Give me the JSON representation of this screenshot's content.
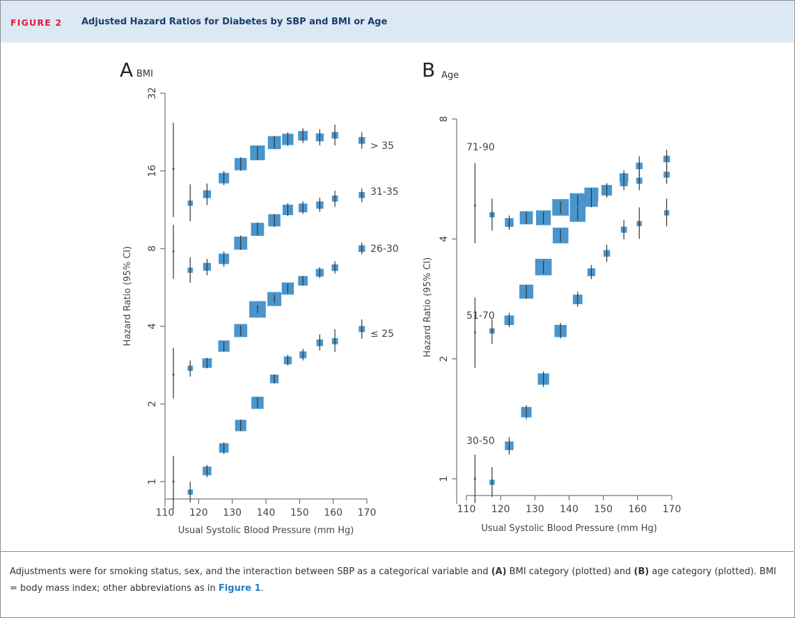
{
  "header": {
    "figure_label": "FIGURE 2",
    "figure_title": "Adjusted Hazard Ratios for Diabetes by SBP and BMI or Age"
  },
  "caption": {
    "text_1": "Adjustments were for smoking status, sex, and the interaction between SBP as a categorical variable and ",
    "bold_a": "(A)",
    "text_2": " BMI category (plotted) and ",
    "bold_b": "(B)",
    "text_3": " age category (plotted). BMI = body mass index; other abbreviations as in ",
    "link": "Figure 1",
    "text_4": "."
  },
  "colors": {
    "marker": "#4a95cc",
    "whisker": "#333333",
    "axis": "#555555"
  },
  "chart_data": [
    {
      "panel": "A",
      "type": "scatter",
      "subtitle": "BMI",
      "xlabel": "Usual Systolic Blood Pressure (mm Hg)",
      "ylabel": "Hazard Ratio (95% CI)",
      "ylog": true,
      "xlim": [
        110,
        170
      ],
      "ylim": [
        0.85,
        32
      ],
      "x_ticks": [
        110,
        120,
        130,
        140,
        150,
        160,
        170
      ],
      "y_ticks": [
        1,
        2,
        4,
        8,
        16,
        32
      ],
      "series": [
        {
          "name": "> 35",
          "points": [
            {
              "x": 112.5,
              "y": 16.3,
              "lo": 10.6,
              "hi": 24.6,
              "w": 0.05
            },
            {
              "x": 117.5,
              "y": 12.0,
              "lo": 10.2,
              "hi": 14.2,
              "w": 0.3
            },
            {
              "x": 122.5,
              "y": 13.0,
              "lo": 11.8,
              "hi": 14.3,
              "w": 0.45
            },
            {
              "x": 127.5,
              "y": 15.0,
              "lo": 14.1,
              "hi": 16.0,
              "w": 0.6
            },
            {
              "x": 132.5,
              "y": 17.0,
              "lo": 16.0,
              "hi": 18.1,
              "w": 0.7
            },
            {
              "x": 137.5,
              "y": 18.8,
              "lo": 17.7,
              "hi": 19.9,
              "w": 0.85
            },
            {
              "x": 142.5,
              "y": 20.6,
              "lo": 19.5,
              "hi": 21.8,
              "w": 0.75
            },
            {
              "x": 146.5,
              "y": 21.2,
              "lo": 20.0,
              "hi": 22.6,
              "w": 0.65
            },
            {
              "x": 151.0,
              "y": 21.9,
              "lo": 20.5,
              "hi": 23.4,
              "w": 0.55
            },
            {
              "x": 156.0,
              "y": 21.6,
              "lo": 20.1,
              "hi": 23.2,
              "w": 0.45
            },
            {
              "x": 160.5,
              "y": 22.0,
              "lo": 20.1,
              "hi": 24.2,
              "w": 0.38
            },
            {
              "x": 168.5,
              "y": 21.0,
              "lo": 19.5,
              "hi": 22.6,
              "w": 0.38
            }
          ]
        },
        {
          "name": "31-35",
          "points": [
            {
              "x": 112.5,
              "y": 7.8,
              "lo": 6.1,
              "hi": 9.9,
              "w": 0.05
            },
            {
              "x": 117.5,
              "y": 6.6,
              "lo": 5.9,
              "hi": 7.4,
              "w": 0.3
            },
            {
              "x": 122.5,
              "y": 6.8,
              "lo": 6.3,
              "hi": 7.3,
              "w": 0.45
            },
            {
              "x": 127.5,
              "y": 7.3,
              "lo": 6.8,
              "hi": 7.8,
              "w": 0.6
            },
            {
              "x": 132.5,
              "y": 8.4,
              "lo": 7.9,
              "hi": 9.0,
              "w": 0.75
            },
            {
              "x": 137.5,
              "y": 9.5,
              "lo": 9.0,
              "hi": 10.1,
              "w": 0.75
            },
            {
              "x": 142.5,
              "y": 10.3,
              "lo": 9.7,
              "hi": 10.9,
              "w": 0.7
            },
            {
              "x": 146.5,
              "y": 11.3,
              "lo": 10.7,
              "hi": 12.0,
              "w": 0.6
            },
            {
              "x": 151.0,
              "y": 11.5,
              "lo": 10.9,
              "hi": 12.2,
              "w": 0.5
            },
            {
              "x": 156.0,
              "y": 11.8,
              "lo": 11.1,
              "hi": 12.6,
              "w": 0.42
            },
            {
              "x": 160.5,
              "y": 12.5,
              "lo": 11.6,
              "hi": 13.4,
              "w": 0.35
            },
            {
              "x": 168.5,
              "y": 12.9,
              "lo": 12.1,
              "hi": 13.7,
              "w": 0.35
            }
          ]
        },
        {
          "name": "26-30",
          "points": [
            {
              "x": 112.5,
              "y": 2.6,
              "lo": 2.1,
              "hi": 3.3,
              "w": 0.05
            },
            {
              "x": 117.5,
              "y": 2.75,
              "lo": 2.55,
              "hi": 2.95,
              "w": 0.3
            },
            {
              "x": 122.5,
              "y": 2.88,
              "lo": 2.75,
              "hi": 3.02,
              "w": 0.55
            },
            {
              "x": 127.5,
              "y": 3.35,
              "lo": 3.2,
              "hi": 3.5,
              "w": 0.65
            },
            {
              "x": 132.5,
              "y": 3.85,
              "lo": 3.68,
              "hi": 4.02,
              "w": 0.75
            },
            {
              "x": 137.5,
              "y": 4.65,
              "lo": 4.48,
              "hi": 4.82,
              "w": 0.95
            },
            {
              "x": 142.5,
              "y": 5.1,
              "lo": 4.92,
              "hi": 5.3,
              "w": 0.8
            },
            {
              "x": 146.5,
              "y": 5.6,
              "lo": 5.38,
              "hi": 5.82,
              "w": 0.7
            },
            {
              "x": 151.0,
              "y": 6.0,
              "lo": 5.75,
              "hi": 6.27,
              "w": 0.55
            },
            {
              "x": 156.0,
              "y": 6.45,
              "lo": 6.15,
              "hi": 6.78,
              "w": 0.45
            },
            {
              "x": 160.5,
              "y": 6.75,
              "lo": 6.4,
              "hi": 7.15,
              "w": 0.38
            },
            {
              "x": 168.5,
              "y": 8.0,
              "lo": 7.6,
              "hi": 8.45,
              "w": 0.38
            }
          ]
        },
        {
          "name": "≤ 25",
          "points": [
            {
              "x": 112.5,
              "y": 1.0,
              "lo": 0.78,
              "hi": 1.26,
              "w": 0.05
            },
            {
              "x": 117.5,
              "y": 0.91,
              "lo": 0.83,
              "hi": 1.0,
              "w": 0.3
            },
            {
              "x": 122.5,
              "y": 1.1,
              "lo": 1.04,
              "hi": 1.16,
              "w": 0.5
            },
            {
              "x": 127.5,
              "y": 1.35,
              "lo": 1.28,
              "hi": 1.42,
              "w": 0.55
            },
            {
              "x": 132.5,
              "y": 1.65,
              "lo": 1.57,
              "hi": 1.74,
              "w": 0.65
            },
            {
              "x": 137.5,
              "y": 2.02,
              "lo": 1.93,
              "hi": 2.12,
              "w": 0.7
            },
            {
              "x": 142.5,
              "y": 2.5,
              "lo": 2.4,
              "hi": 2.6,
              "w": 0.5
            },
            {
              "x": 146.5,
              "y": 2.95,
              "lo": 2.82,
              "hi": 3.1,
              "w": 0.45
            },
            {
              "x": 151.0,
              "y": 3.1,
              "lo": 2.95,
              "hi": 3.27,
              "w": 0.4
            },
            {
              "x": 156.0,
              "y": 3.45,
              "lo": 3.22,
              "hi": 3.72,
              "w": 0.38
            },
            {
              "x": 160.5,
              "y": 3.5,
              "lo": 3.18,
              "hi": 3.9,
              "w": 0.35
            },
            {
              "x": 168.5,
              "y": 3.9,
              "lo": 3.58,
              "hi": 4.25,
              "w": 0.35
            }
          ]
        }
      ]
    },
    {
      "panel": "B",
      "type": "scatter",
      "subtitle": "Age",
      "xlabel": "Usual Systolic Blood Pressure (mm Hg)",
      "ylabel": "Hazard Ratio (95% CI)",
      "ylog": true,
      "xlim": [
        110,
        170
      ],
      "ylim": [
        0.9,
        8
      ],
      "x_ticks": [
        110,
        120,
        130,
        140,
        150,
        160,
        170
      ],
      "y_ticks": [
        1,
        2,
        4,
        8
      ],
      "series": [
        {
          "name": "71-90",
          "points": [
            {
              "x": 112.5,
              "y": 4.85,
              "lo": 3.9,
              "hi": 6.2,
              "w": 0.05
            },
            {
              "x": 117.5,
              "y": 4.6,
              "lo": 4.2,
              "hi": 5.05,
              "w": 0.3
            },
            {
              "x": 122.5,
              "y": 4.4,
              "lo": 4.22,
              "hi": 4.58,
              "w": 0.5
            },
            {
              "x": 127.5,
              "y": 4.52,
              "lo": 4.36,
              "hi": 4.68,
              "w": 0.75
            },
            {
              "x": 132.5,
              "y": 4.52,
              "lo": 4.36,
              "hi": 4.68,
              "w": 0.85
            },
            {
              "x": 137.5,
              "y": 4.8,
              "lo": 4.63,
              "hi": 4.97,
              "w": 0.95
            },
            {
              "x": 142.5,
              "y": 4.98,
              "lo": 4.8,
              "hi": 5.16,
              "w": 0.9
            },
            {
              "x": 146.5,
              "y": 5.17,
              "lo": 4.98,
              "hi": 5.36,
              "w": 0.8
            },
            {
              "x": 151.0,
              "y": 5.3,
              "lo": 5.1,
              "hi": 5.5,
              "w": 0.6
            },
            {
              "x": 156.0,
              "y": 5.7,
              "lo": 5.45,
              "hi": 5.95,
              "w": 0.5
            },
            {
              "x": 160.5,
              "y": 6.1,
              "lo": 5.75,
              "hi": 6.45,
              "w": 0.38
            },
            {
              "x": 168.5,
              "y": 6.35,
              "lo": 6.0,
              "hi": 6.7,
              "w": 0.38
            }
          ]
        },
        {
          "name": "51-70",
          "points": [
            {
              "x": 112.5,
              "y": 2.33,
              "lo": 1.9,
              "hi": 2.85,
              "w": 0.05
            },
            {
              "x": 117.5,
              "y": 2.35,
              "lo": 2.18,
              "hi": 2.52,
              "w": 0.3
            },
            {
              "x": 122.5,
              "y": 2.5,
              "lo": 2.4,
              "hi": 2.61,
              "w": 0.55
            },
            {
              "x": 127.5,
              "y": 2.95,
              "lo": 2.83,
              "hi": 3.07,
              "w": 0.8
            },
            {
              "x": 132.5,
              "y": 3.4,
              "lo": 3.27,
              "hi": 3.53,
              "w": 0.95
            },
            {
              "x": 137.5,
              "y": 4.08,
              "lo": 3.93,
              "hi": 4.23,
              "w": 0.9
            },
            {
              "x": 142.5,
              "y": 4.62,
              "lo": 4.45,
              "hi": 4.8,
              "w": 0.9
            },
            {
              "x": 146.5,
              "y": 5.0,
              "lo": 4.8,
              "hi": 5.2,
              "w": 0.75
            },
            {
              "x": 151.0,
              "y": 5.3,
              "lo": 5.08,
              "hi": 5.52,
              "w": 0.6
            },
            {
              "x": 156.0,
              "y": 5.55,
              "lo": 5.3,
              "hi": 5.82,
              "w": 0.45
            },
            {
              "x": 160.5,
              "y": 5.6,
              "lo": 5.3,
              "hi": 5.92,
              "w": 0.35
            },
            {
              "x": 168.5,
              "y": 5.8,
              "lo": 5.5,
              "hi": 6.15,
              "w": 0.35
            }
          ]
        },
        {
          "name": "30-50",
          "points": [
            {
              "x": 112.5,
              "y": 1.0,
              "lo": 0.87,
              "hi": 1.15,
              "w": 0.05
            },
            {
              "x": 117.5,
              "y": 0.98,
              "lo": 0.9,
              "hi": 1.07,
              "w": 0.3
            },
            {
              "x": 122.5,
              "y": 1.21,
              "lo": 1.15,
              "hi": 1.27,
              "w": 0.5
            },
            {
              "x": 127.5,
              "y": 1.47,
              "lo": 1.41,
              "hi": 1.53,
              "w": 0.6
            },
            {
              "x": 132.5,
              "y": 1.78,
              "lo": 1.7,
              "hi": 1.86,
              "w": 0.65
            },
            {
              "x": 137.5,
              "y": 2.35,
              "lo": 2.25,
              "hi": 2.46,
              "w": 0.7
            },
            {
              "x": 142.5,
              "y": 2.82,
              "lo": 2.7,
              "hi": 2.95,
              "w": 0.55
            },
            {
              "x": 146.5,
              "y": 3.3,
              "lo": 3.17,
              "hi": 3.44,
              "w": 0.45
            },
            {
              "x": 151.0,
              "y": 3.68,
              "lo": 3.5,
              "hi": 3.87,
              "w": 0.38
            },
            {
              "x": 156.0,
              "y": 4.22,
              "lo": 3.99,
              "hi": 4.46,
              "w": 0.35
            },
            {
              "x": 160.5,
              "y": 4.37,
              "lo": 4.0,
              "hi": 4.8,
              "w": 0.3
            },
            {
              "x": 168.5,
              "y": 4.65,
              "lo": 4.3,
              "hi": 5.05,
              "w": 0.3
            }
          ]
        }
      ]
    }
  ]
}
